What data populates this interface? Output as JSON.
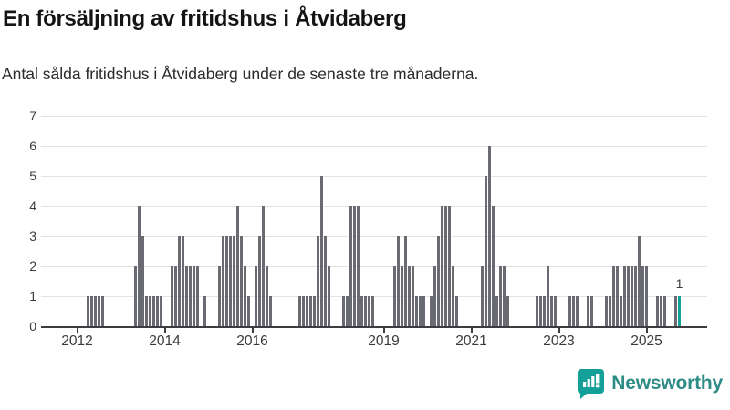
{
  "header": {
    "title": "En försäljning av fritidshus i Åtvidaberg",
    "subtitle": "Antal sålda fritidshus i Åtvidaberg under de senaste tre månaderna."
  },
  "chart_data": {
    "type": "bar",
    "title": "En försäljning av fritidshus i Åtvidaberg",
    "subtitle": "Antal sålda fritidshus i Åtvidaberg under de senaste tre månaderna.",
    "xlabel": "",
    "ylabel": "",
    "ylim": [
      0,
      7
    ],
    "y_ticks": [
      "0",
      "1",
      "2",
      "3",
      "4",
      "5",
      "6",
      "7"
    ],
    "x_tick_years": [
      "2012",
      "2014",
      "2016",
      "2019",
      "2021",
      "2023",
      "2025"
    ],
    "x_domain_months": [
      "2011-01",
      "2026-03"
    ],
    "grid": "horizontal",
    "legend": "none",
    "bar_color": "#6a6a72",
    "highlight": {
      "month": "2025-10",
      "value": 1,
      "label": "1",
      "color": "#14a099"
    },
    "monthly_values": [
      [
        "2012-04",
        1
      ],
      [
        "2012-05",
        1
      ],
      [
        "2012-06",
        1
      ],
      [
        "2012-07",
        1
      ],
      [
        "2012-08",
        1
      ],
      [
        "2013-05",
        2
      ],
      [
        "2013-06",
        4
      ],
      [
        "2013-07",
        3
      ],
      [
        "2013-08",
        1
      ],
      [
        "2013-09",
        1
      ],
      [
        "2013-10",
        1
      ],
      [
        "2013-11",
        1
      ],
      [
        "2013-12",
        1
      ],
      [
        "2014-03",
        2
      ],
      [
        "2014-04",
        2
      ],
      [
        "2014-05",
        3
      ],
      [
        "2014-06",
        3
      ],
      [
        "2014-07",
        2
      ],
      [
        "2014-08",
        2
      ],
      [
        "2014-09",
        2
      ],
      [
        "2014-10",
        2
      ],
      [
        "2014-12",
        1
      ],
      [
        "2015-04",
        2
      ],
      [
        "2015-05",
        3
      ],
      [
        "2015-06",
        3
      ],
      [
        "2015-07",
        3
      ],
      [
        "2015-08",
        3
      ],
      [
        "2015-09",
        4
      ],
      [
        "2015-10",
        3
      ],
      [
        "2015-11",
        2
      ],
      [
        "2015-12",
        1
      ],
      [
        "2016-02",
        2
      ],
      [
        "2016-03",
        3
      ],
      [
        "2016-04",
        4
      ],
      [
        "2016-05",
        2
      ],
      [
        "2016-06",
        1
      ],
      [
        "2017-02",
        1
      ],
      [
        "2017-03",
        1
      ],
      [
        "2017-04",
        1
      ],
      [
        "2017-05",
        1
      ],
      [
        "2017-06",
        1
      ],
      [
        "2017-07",
        3
      ],
      [
        "2017-08",
        5
      ],
      [
        "2017-09",
        3
      ],
      [
        "2017-10",
        2
      ],
      [
        "2018-02",
        1
      ],
      [
        "2018-03",
        1
      ],
      [
        "2018-04",
        4
      ],
      [
        "2018-05",
        4
      ],
      [
        "2018-06",
        4
      ],
      [
        "2018-07",
        1
      ],
      [
        "2018-08",
        1
      ],
      [
        "2018-09",
        1
      ],
      [
        "2018-10",
        1
      ],
      [
        "2019-04",
        2
      ],
      [
        "2019-05",
        3
      ],
      [
        "2019-06",
        2
      ],
      [
        "2019-07",
        3
      ],
      [
        "2019-08",
        2
      ],
      [
        "2019-09",
        2
      ],
      [
        "2019-10",
        1
      ],
      [
        "2019-11",
        1
      ],
      [
        "2019-12",
        1
      ],
      [
        "2020-02",
        1
      ],
      [
        "2020-03",
        2
      ],
      [
        "2020-04",
        3
      ],
      [
        "2020-05",
        4
      ],
      [
        "2020-06",
        4
      ],
      [
        "2020-07",
        4
      ],
      [
        "2020-08",
        2
      ],
      [
        "2020-09",
        1
      ],
      [
        "2021-04",
        2
      ],
      [
        "2021-05",
        5
      ],
      [
        "2021-06",
        6
      ],
      [
        "2021-07",
        4
      ],
      [
        "2021-08",
        1
      ],
      [
        "2021-09",
        2
      ],
      [
        "2021-10",
        2
      ],
      [
        "2021-11",
        1
      ],
      [
        "2022-07",
        1
      ],
      [
        "2022-08",
        1
      ],
      [
        "2022-09",
        1
      ],
      [
        "2022-10",
        2
      ],
      [
        "2022-11",
        1
      ],
      [
        "2022-12",
        1
      ],
      [
        "2023-04",
        1
      ],
      [
        "2023-05",
        1
      ],
      [
        "2023-06",
        1
      ],
      [
        "2023-09",
        1
      ],
      [
        "2023-10",
        1
      ],
      [
        "2024-02",
        1
      ],
      [
        "2024-03",
        1
      ],
      [
        "2024-04",
        2
      ],
      [
        "2024-05",
        2
      ],
      [
        "2024-06",
        1
      ],
      [
        "2024-07",
        2
      ],
      [
        "2024-08",
        2
      ],
      [
        "2024-09",
        2
      ],
      [
        "2024-10",
        2
      ],
      [
        "2024-11",
        3
      ],
      [
        "2024-12",
        2
      ],
      [
        "2025-01",
        2
      ],
      [
        "2025-04",
        1
      ],
      [
        "2025-05",
        1
      ],
      [
        "2025-06",
        1
      ],
      [
        "2025-09",
        1
      ],
      [
        "2025-10",
        1
      ]
    ]
  },
  "logo": {
    "text": "Newsworthy",
    "icon": "newsworthy-speech-bubble-chart",
    "icon_color": "#14a099",
    "text_color": "#2f8b86"
  }
}
